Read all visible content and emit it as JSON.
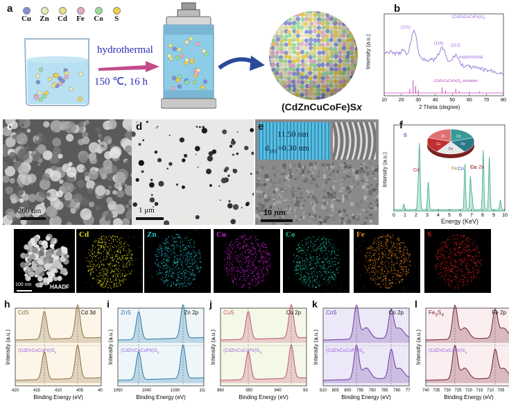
{
  "panel_a": {
    "label": "a",
    "elements": [
      {
        "symbol": "Cu",
        "color": "#7f8fd8"
      },
      {
        "symbol": "Zn",
        "color": "#e9e9b6"
      },
      {
        "symbol": "Cd",
        "color": "#e6e08a"
      },
      {
        "symbol": "Fe",
        "color": "#e8a9c6"
      },
      {
        "symbol": "Co",
        "color": "#98dd98"
      },
      {
        "symbol": "S",
        "color": "#f0d040"
      }
    ],
    "process": "hydrothermal",
    "conditions": "150 ℃, 16 h",
    "product": "(CdZnCuCoFe)S",
    "product_sub": "x"
  },
  "panel_b": {
    "label": "b",
    "formula": "(CdZnCuCoFe)S",
    "formula_sub": "x",
    "peak_labels": [
      "(101)",
      "(116)",
      "(112)"
    ],
    "experimental": "experimental",
    "simulated": "(CdZnCuCoFe)S",
    "simulated_suffix": " simulated",
    "simulated_sub": "x",
    "ylabel": "Intensity (a.u.)",
    "xlabel": "2 Theta (degree)",
    "xticks": [
      "10",
      "20",
      "30",
      "40",
      "50",
      "60",
      "70",
      "80"
    ]
  },
  "panel_c": {
    "label": "c",
    "scale": "200 nm"
  },
  "panel_d": {
    "label": "d",
    "scale": "1 μm"
  },
  "panel_e": {
    "label": "e",
    "spacing1": "11.50 nm",
    "spacing2": "d",
    "spacing2_sub": "101",
    "spacing2_val": "=0.30 nm",
    "scale": "10 nm"
  },
  "panel_f": {
    "label": "f",
    "ylabel": "Intensity (a.u.)",
    "xlabel": "Energy (KeV)",
    "xticks": [
      "0",
      "1",
      "2",
      "3",
      "4",
      "5",
      "6",
      "7",
      "8",
      "9",
      "10"
    ],
    "peak_labels": [
      "S",
      "Cd",
      "Fe",
      "Co",
      "Cu",
      "Zn"
    ],
    "pie_labels": [
      "Cd",
      "Fe",
      "Co",
      "Cu",
      "Zn"
    ]
  },
  "panel_g": {
    "label": "g",
    "haadf_label": "HAADF",
    "scale": "100 nm",
    "maps": [
      {
        "element": "Cd",
        "color": "#e8e020"
      },
      {
        "element": "Zn",
        "color": "#20c8d8"
      },
      {
        "element": "Cu",
        "color": "#d020d8"
      },
      {
        "element": "Co",
        "color": "#20c0a0"
      },
      {
        "element": "Fe",
        "color": "#f08820"
      },
      {
        "element": "S",
        "color": "#e02020"
      }
    ]
  },
  "xps": {
    "ylabel": "Intensity (a.u.)",
    "xlabel": "Binding Energy (eV)",
    "compound": "(CdZnCuCoFe)S",
    "compound_sub": "x",
    "panels": [
      {
        "label": "h",
        "ref": "CdS",
        "orbital": "Cd 3d",
        "xticks": [
          "420",
          "415",
          "410",
          "405",
          "400"
        ]
      },
      {
        "label": "i",
        "ref": "ZnS",
        "orbital": "Zn 2p",
        "xticks": [
          "1050",
          "1040",
          "1030",
          "1020"
        ]
      },
      {
        "label": "j",
        "ref": "CuS",
        "orbital": "Cu 2p",
        "xticks": [
          "960",
          "950",
          "940",
          "930"
        ]
      },
      {
        "label": "k",
        "ref": "CoS",
        "orbital": "Co 2p",
        "xticks": [
          "810",
          "805",
          "800",
          "795",
          "790",
          "785",
          "780",
          "775"
        ]
      },
      {
        "label": "l",
        "ref": "Fe",
        "ref_sub1": "3",
        "ref_mid": "S",
        "ref_sub2": "4",
        "orbital": "Fe 2p",
        "xticks": [
          "740",
          "735",
          "730",
          "725",
          "720",
          "715",
          "710",
          "705",
          "700"
        ]
      }
    ]
  }
}
